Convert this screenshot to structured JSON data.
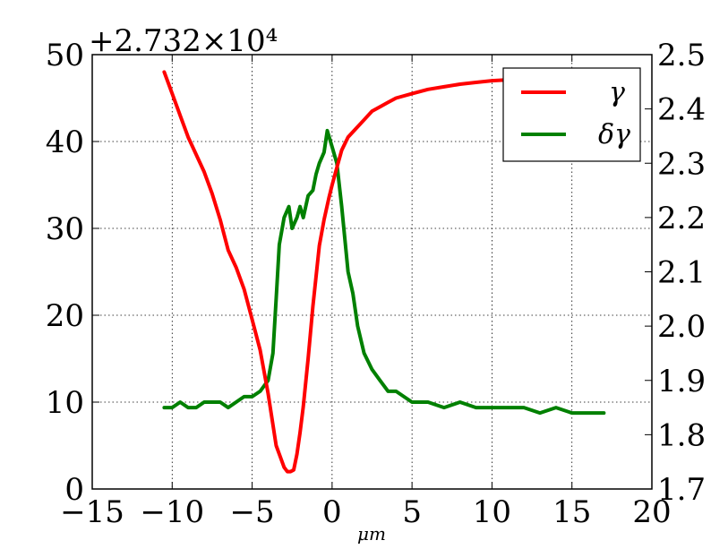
{
  "chart_data": {
    "type": "line",
    "title": "",
    "xlabel": "μm",
    "ylabel": "",
    "y2label": "",
    "xlim": [
      -15,
      20
    ],
    "ylim": [
      0,
      50
    ],
    "y2lim": [
      1.7,
      2.5
    ],
    "y_offset_label": "+2.732×10⁴",
    "x_ticks": [
      "−15",
      "−10",
      "−5",
      "0",
      "5",
      "10",
      "15",
      "20"
    ],
    "x_tick_values": [
      -15,
      -10,
      -5,
      0,
      5,
      10,
      15,
      20
    ],
    "y_ticks": [
      "0",
      "10",
      "20",
      "30",
      "40",
      "50"
    ],
    "y_tick_values": [
      0,
      10,
      20,
      30,
      40,
      50
    ],
    "y2_ticks": [
      "1.7",
      "1.8",
      "1.9",
      "2.0",
      "2.1",
      "2.2",
      "2.3",
      "2.4",
      "2.5"
    ],
    "y2_tick_values": [
      1.7,
      1.8,
      1.9,
      2.0,
      2.1,
      2.2,
      2.3,
      2.4,
      2.5
    ],
    "grid": true,
    "legend_position": "top-right",
    "series": [
      {
        "name": "γ",
        "color": "#ff0000",
        "axis": "left",
        "x": [
          -10.5,
          -10,
          -9.5,
          -9,
          -8.5,
          -8,
          -7.5,
          -7,
          -6.5,
          -6,
          -5.5,
          -5,
          -4.5,
          -4,
          -3.5,
          -3,
          -2.8,
          -2.6,
          -2.4,
          -2.2,
          -2.0,
          -1.8,
          -1.5,
          -1.2,
          -1.0,
          -0.8,
          -0.5,
          -0.2,
          0,
          0.3,
          0.6,
          1,
          1.5,
          2,
          2.5,
          3,
          3.5,
          4,
          5,
          6,
          7,
          8,
          9,
          10,
          11,
          12,
          13
        ],
        "y": [
          48,
          45.5,
          43,
          40.5,
          38.5,
          36.5,
          34,
          31,
          27.5,
          25.5,
          23,
          19.5,
          16,
          11,
          5,
          2.5,
          2,
          2,
          2.2,
          4,
          6.5,
          9.5,
          15,
          21,
          24.5,
          28,
          31,
          33.5,
          35,
          37,
          39,
          40.5,
          41.5,
          42.5,
          43.5,
          44,
          44.5,
          45,
          45.5,
          46,
          46.3,
          46.6,
          46.8,
          47,
          47.1,
          47.2,
          47.3
        ]
      },
      {
        "name": "δγ",
        "color": "#008000",
        "axis": "right",
        "x": [
          -10.5,
          -10,
          -9.5,
          -9,
          -8.5,
          -8,
          -7.5,
          -7,
          -6.5,
          -6,
          -5.5,
          -5,
          -4.5,
          -4,
          -3.7,
          -3.5,
          -3.3,
          -3,
          -2.7,
          -2.5,
          -2.2,
          -2,
          -1.8,
          -1.5,
          -1.2,
          -1,
          -0.8,
          -0.5,
          -0.3,
          0,
          0.3,
          0.6,
          1,
          1.3,
          1.6,
          2,
          2.5,
          3,
          3.5,
          4,
          5,
          6,
          7,
          8,
          9,
          10,
          11,
          12,
          13,
          14,
          15,
          16,
          17
        ],
        "y": [
          1.85,
          1.85,
          1.86,
          1.85,
          1.85,
          1.86,
          1.86,
          1.86,
          1.85,
          1.86,
          1.87,
          1.87,
          1.88,
          1.9,
          1.95,
          2.05,
          2.15,
          2.2,
          2.22,
          2.18,
          2.2,
          2.22,
          2.2,
          2.24,
          2.25,
          2.28,
          2.3,
          2.32,
          2.36,
          2.33,
          2.3,
          2.22,
          2.1,
          2.06,
          2.0,
          1.95,
          1.92,
          1.9,
          1.88,
          1.88,
          1.86,
          1.86,
          1.85,
          1.86,
          1.85,
          1.85,
          1.85,
          1.85,
          1.84,
          1.85,
          1.84,
          1.84,
          1.84
        ]
      }
    ]
  }
}
